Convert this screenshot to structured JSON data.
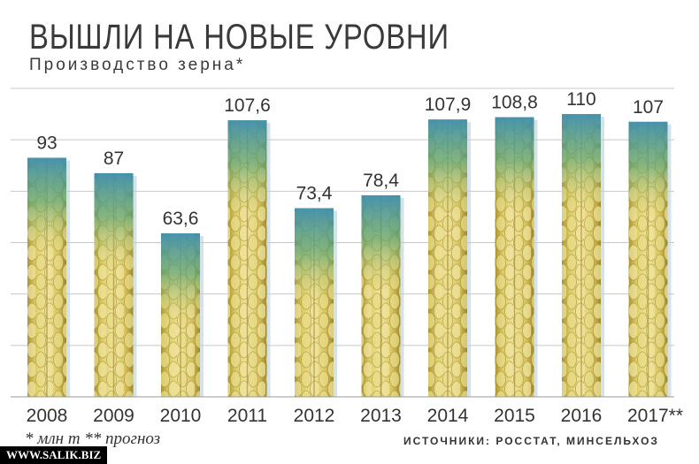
{
  "header": {
    "title": "ВЫШЛИ НА НОВЫЕ УРОВНИ",
    "subtitle": "Производство зерна*"
  },
  "footer": {
    "footnote": "* млн т    ** прогноз",
    "sources": "ИСТОЧНИКИ: РОССТАТ, МИНСЕЛЬХОЗ",
    "watermark": "WWW.SALIK.BIZ"
  },
  "chart_data": {
    "type": "bar",
    "title": "ВЫШЛИ НА НОВЫЕ УРОВНИ",
    "subtitle": "Производство зерна*",
    "categories": [
      "2008",
      "2009",
      "2010",
      "2011",
      "2012",
      "2013",
      "2014",
      "2015",
      "2016",
      "2017**"
    ],
    "values": [
      93,
      87,
      63.6,
      107.6,
      73.4,
      78.4,
      107.9,
      108.8,
      110,
      107
    ],
    "value_labels": [
      "93",
      "87",
      "63,6",
      "107,6",
      "73,4",
      "78,4",
      "107,9",
      "108,8",
      "110",
      "107"
    ],
    "ylim": [
      0,
      120
    ],
    "grid": true,
    "legend": "none",
    "bar_style": "wheat-ear",
    "colors": {
      "grain": "#d9c45a",
      "grain_light": "#efe39a",
      "grain_dark": "#a48a2a",
      "tip_green": "#4a9a72",
      "tip_blue": "#3a8fb8",
      "gridline": "#c8c8c8",
      "text": "#333333"
    }
  }
}
